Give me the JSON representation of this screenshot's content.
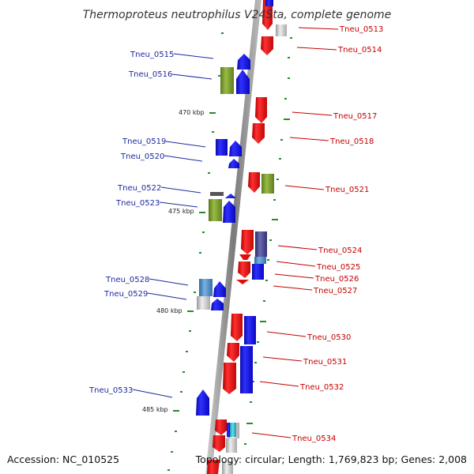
{
  "title": "Thermoproteus neutrophilus V24Sta, complete genome",
  "accession": "Accession: NC_010525",
  "summary": "Topology: circular; Length: 1,769,823 bp; Genes: 2,008",
  "kbp_labels": [
    "470 kbp",
    "475 kbp",
    "480 kbp",
    "485 kbp"
  ],
  "left_genes": [
    "Tneu_0515",
    "Tneu_0516",
    "Tneu_0519",
    "Tneu_0520",
    "Tneu_0522",
    "Tneu_0523",
    "Tneu_0528",
    "Tneu_0529",
    "Tneu_0533"
  ],
  "right_genes": [
    "Tneu_0513",
    "Tneu_0514",
    "Tneu_0517",
    "Tneu_0518",
    "Tneu_0521",
    "Tneu_0524",
    "Tneu_0525",
    "Tneu_0526",
    "Tneu_0527",
    "Tneu_0530",
    "Tneu_0531",
    "Tneu_0532",
    "Tneu_0534"
  ],
  "colors": {
    "forward_strand": "#1010ee",
    "reverse_strand": "#ee1010",
    "olive": "#7a9a2e",
    "grey": "#c4c4c4",
    "slate": "#444488",
    "cyan": "#22bbcc",
    "steel": "#4a86c0",
    "backbone": "#888888",
    "tick": "#2a8a2a",
    "left_label": "#1c2a9e",
    "right_label": "#c40000"
  }
}
